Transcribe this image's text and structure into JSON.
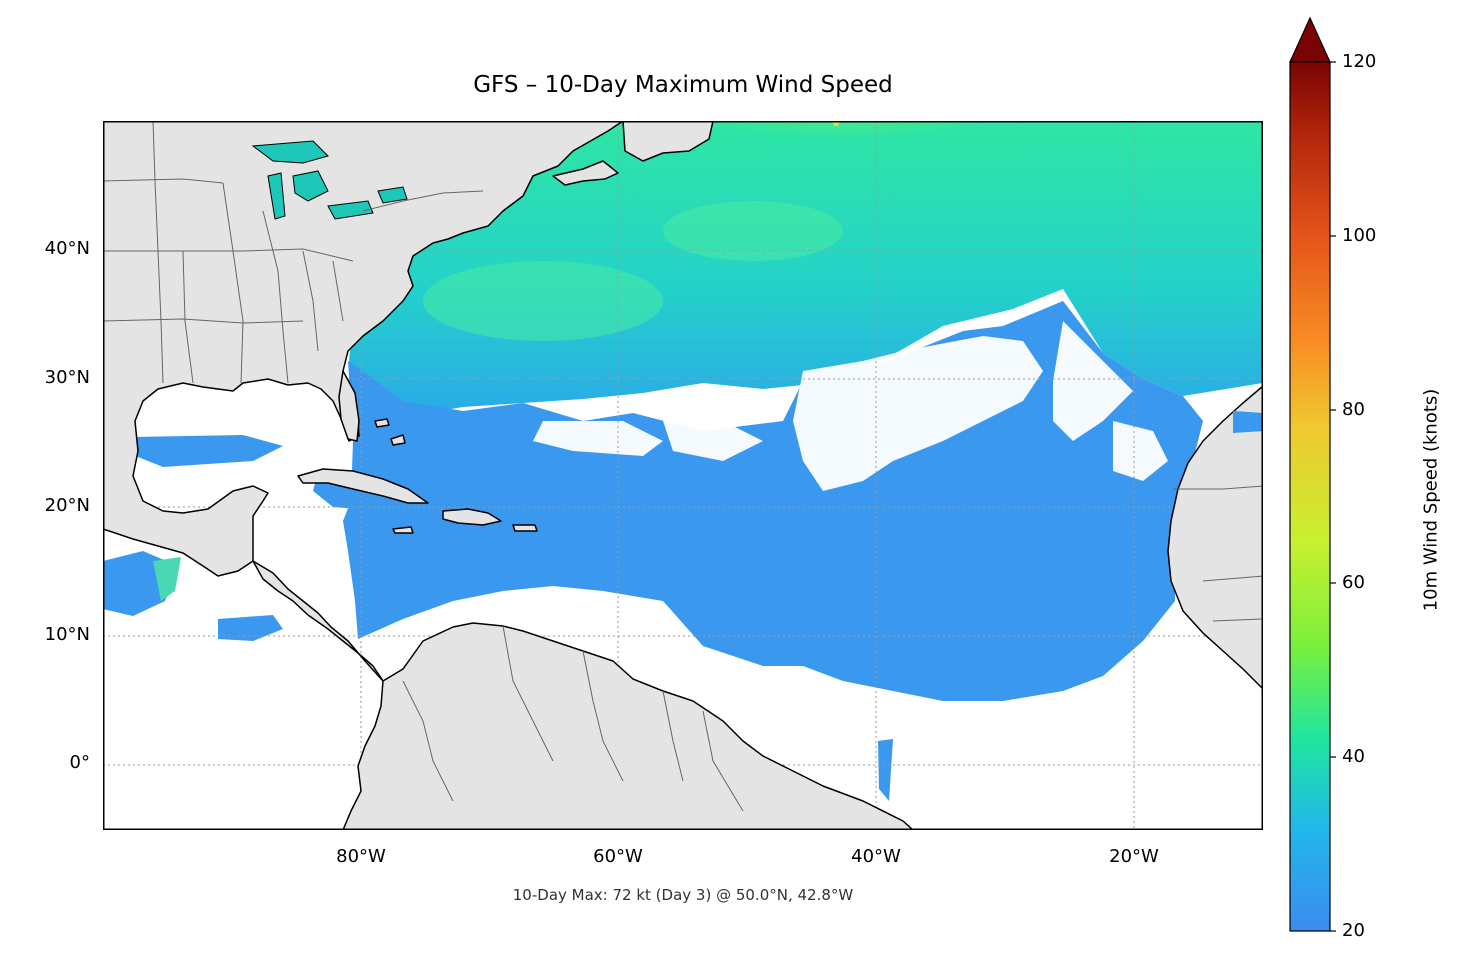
{
  "title": "GFS – 10-Day Maximum Wind Speed",
  "footnote": "10-Day Max: 72 kt (Day 3) @ 50.0°N, 42.8°W",
  "map": {
    "extent": {
      "lon_min": -100,
      "lon_max": -10,
      "lat_min": -5,
      "lat_max": 50
    },
    "lat_ticks": [
      {
        "value": 40,
        "label": "40°N"
      },
      {
        "value": 30,
        "label": "30°N"
      },
      {
        "value": 20,
        "label": "20°N"
      },
      {
        "value": 10,
        "label": "10°N"
      },
      {
        "value": 0,
        "label": "0°"
      }
    ],
    "lon_ticks": [
      {
        "value": -80,
        "label": "80°W"
      },
      {
        "value": -60,
        "label": "60°W"
      },
      {
        "value": -40,
        "label": "40°W"
      },
      {
        "value": -20,
        "label": "20°W"
      }
    ],
    "gridlines": true,
    "land_color": "#e4e4e4",
    "coast_color": "#000000",
    "border_color": "#666666",
    "lake_color": "#1ec8b8"
  },
  "colorbar": {
    "label": "10m Wind Speed (knots)",
    "min": 20,
    "max": 120,
    "extend": "max",
    "colormap": "turbo",
    "ticks": [
      "20",
      "40",
      "60",
      "80",
      "100",
      "120"
    ],
    "stops": [
      "#3b8bf0",
      "#22b8e8",
      "#1fe6a0",
      "#7cf03c",
      "#c8f030",
      "#f0c830",
      "#f88c24",
      "#e4541a",
      "#b0240c",
      "#7a0404"
    ]
  },
  "max_point": {
    "value_kt": 72,
    "day": 3,
    "lat": 50.0,
    "lon": -42.8
  }
}
